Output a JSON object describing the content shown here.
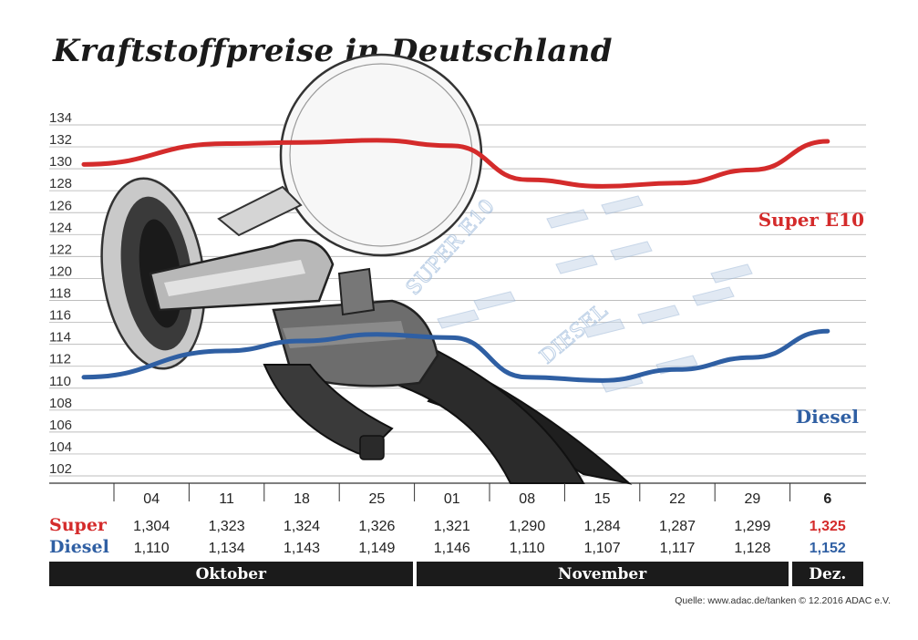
{
  "title": "Kraftstoffpreise in Deutschland",
  "chart_data": {
    "type": "line",
    "title": "Kraftstoffpreise in Deutschland",
    "ylim": [
      102,
      134
    ],
    "yticks": [
      134,
      132,
      130,
      128,
      126,
      124,
      122,
      120,
      118,
      116,
      114,
      112,
      110,
      108,
      106,
      104,
      102
    ],
    "grid": true,
    "categories": [
      "04",
      "11",
      "18",
      "25",
      "01",
      "08",
      "15",
      "22",
      "29",
      "6"
    ],
    "series": [
      {
        "name": "Super E10",
        "row_label": "Super",
        "color": "#d42b2b",
        "values": [
          1.304,
          1.323,
          1.324,
          1.326,
          1.321,
          1.29,
          1.284,
          1.287,
          1.299,
          1.325
        ],
        "labels": [
          "1,304",
          "1,323",
          "1,324",
          "1,326",
          "1,321",
          "1,290",
          "1,284",
          "1,287",
          "1,299",
          "1,325"
        ]
      },
      {
        "name": "Diesel",
        "row_label": "Diesel",
        "color": "#2f5fa3",
        "values": [
          1.11,
          1.134,
          1.143,
          1.149,
          1.146,
          1.11,
          1.107,
          1.117,
          1.128,
          1.152
        ],
        "labels": [
          "1,110",
          "1,134",
          "1,143",
          "1,149",
          "1,146",
          "1,110",
          "1,107",
          "1,117",
          "1,128",
          "1,152"
        ]
      }
    ],
    "months": [
      {
        "label": "Oktober",
        "span": 4
      },
      {
        "label": "November",
        "span": 5
      },
      {
        "label": "Dez.",
        "span": 1
      }
    ],
    "highlight_color": "#d42b2b",
    "highlight_color_diesel": "#2f5fa3"
  },
  "watermark": {
    "super_label": "SUPER E10",
    "diesel_label": "DIESEL"
  },
  "source": "Quelle: www.adac.de/tanken  © 12.2016  ADAC e.V."
}
